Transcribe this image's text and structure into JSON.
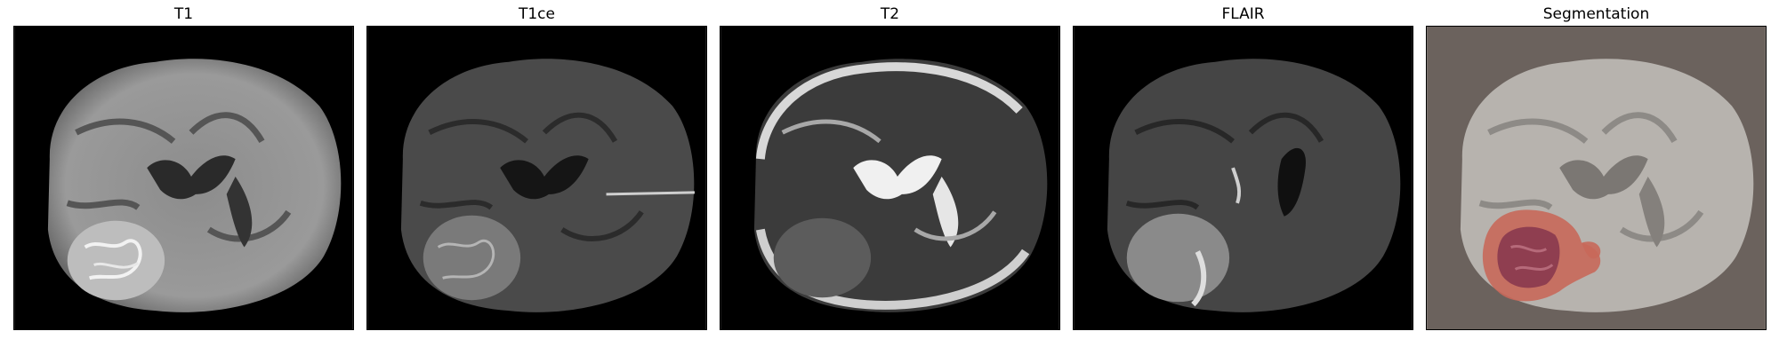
{
  "figure": {
    "panels": [
      {
        "title": "T1",
        "modality": "t1"
      },
      {
        "title": "T1ce",
        "modality": "t1ce"
      },
      {
        "title": "T2",
        "modality": "t2"
      },
      {
        "title": "FLAIR",
        "modality": "flair"
      },
      {
        "title": "Segmentation",
        "modality": "segmentation"
      }
    ],
    "colors": {
      "background_black": "#000000",
      "segmentation_background": "#6b625d",
      "tumor_core": "#8c3b4f",
      "tumor_edema": "#c8685a"
    }
  }
}
